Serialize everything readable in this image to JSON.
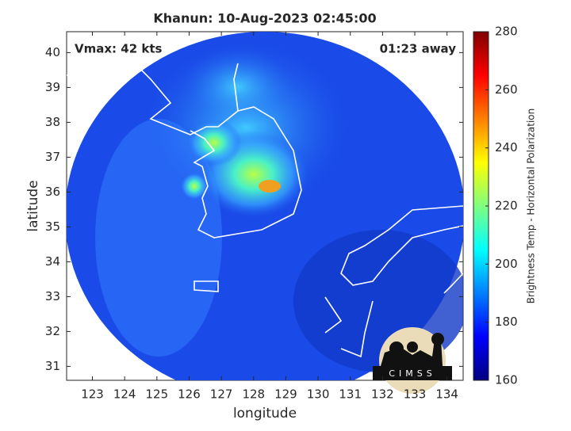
{
  "chart_data": {
    "type": "map",
    "title": "Khanun: 10-Aug-2023 02:45:00",
    "annotations": [
      "Vmax: 42 kts",
      "01:23 away"
    ],
    "xlabel": "longitude",
    "ylabel": "latitude",
    "xlim": [
      122.2,
      134.5
    ],
    "xticks": [
      123,
      124,
      125,
      126,
      127,
      128,
      129,
      130,
      131,
      132,
      133,
      134
    ],
    "ylim": [
      30.6,
      40.6
    ],
    "yticks": [
      31,
      32,
      33,
      34,
      35,
      36,
      37,
      38,
      39,
      40
    ],
    "colorbar": {
      "label": "Brightness Temp - Horizontal Polarization",
      "colormap": "jet",
      "lim": [
        160,
        280
      ],
      "ticks": [
        160,
        180,
        200,
        220,
        240,
        260,
        280
      ]
    }
  },
  "logo": "CIMSS"
}
